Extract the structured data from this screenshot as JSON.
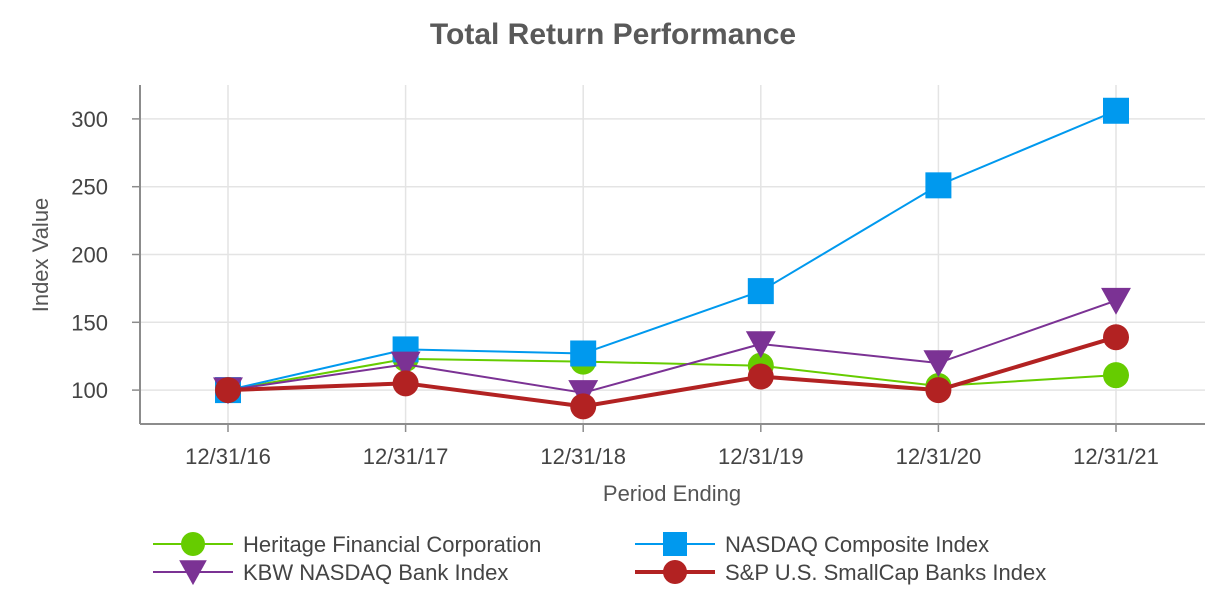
{
  "chart_data": {
    "type": "line",
    "title": "Total Return Performance",
    "xlabel": "Period Ending",
    "ylabel": "Index Value",
    "categories": [
      "12/31/16",
      "12/31/17",
      "12/31/18",
      "12/31/19",
      "12/31/20",
      "12/31/21"
    ],
    "ylim": [
      75,
      325
    ],
    "yticks": [
      100,
      150,
      200,
      250,
      300
    ],
    "grid": true,
    "legend_position": "bottom",
    "series": [
      {
        "name": "Heritage Financial Corporation",
        "color": "#66cc00",
        "marker": "circle",
        "line_weight": "thin",
        "values": [
          100,
          123,
          121,
          118,
          103,
          111
        ]
      },
      {
        "name": "NASDAQ Composite Index",
        "color": "#0099ee",
        "marker": "square",
        "line_weight": "thin",
        "values": [
          100,
          130,
          127,
          173,
          251,
          306
        ]
      },
      {
        "name": "KBW NASDAQ Bank Index",
        "color": "#7b3294",
        "marker": "triangle-down",
        "line_weight": "thin",
        "values": [
          100,
          119,
          98,
          134,
          120,
          166
        ]
      },
      {
        "name": "S&P U.S. SmallCap Banks Index",
        "color": "#b22222",
        "marker": "circle",
        "line_weight": "thick",
        "values": [
          100,
          105,
          88,
          110,
          100,
          139
        ]
      }
    ]
  }
}
